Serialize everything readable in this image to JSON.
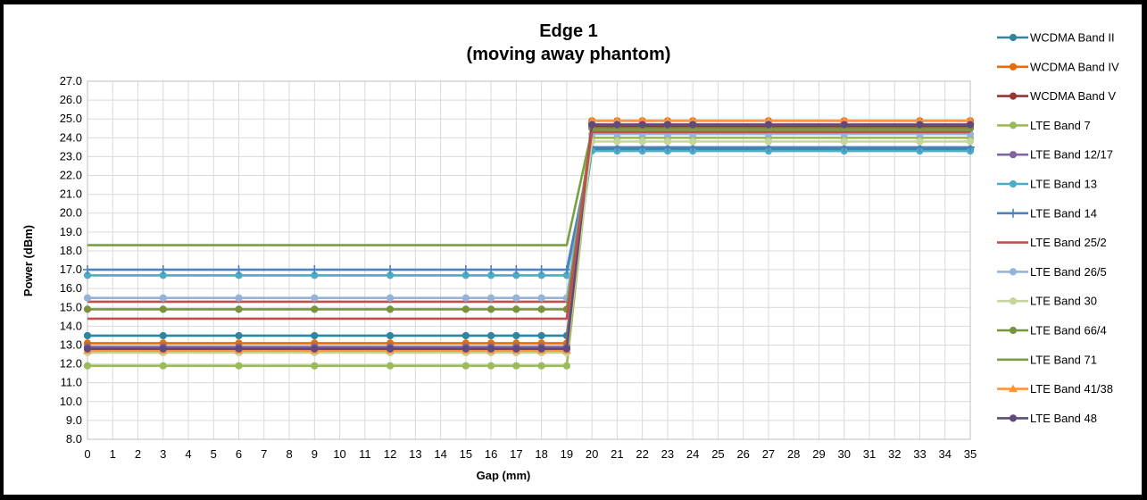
{
  "chart_data": {
    "type": "line",
    "title": [
      "Edge 1",
      "(moving away phantom)"
    ],
    "xlabel": "Gap (mm)",
    "ylabel": "Power (dBm)",
    "x": [
      0,
      1,
      2,
      3,
      4,
      5,
      6,
      7,
      8,
      9,
      10,
      11,
      12,
      13,
      14,
      15,
      16,
      17,
      18,
      19,
      20,
      21,
      22,
      23,
      24,
      25,
      26,
      27,
      28,
      29,
      30,
      31,
      32,
      33,
      34,
      35
    ],
    "x_ticks": [
      "0",
      "1",
      "2",
      "3",
      "4",
      "5",
      "6",
      "7",
      "8",
      "9",
      "10",
      "11",
      "12",
      "13",
      "14",
      "15",
      "16",
      "17",
      "18",
      "19",
      "20",
      "21",
      "22",
      "23",
      "24",
      "25",
      "26",
      "27",
      "28",
      "29",
      "30",
      "31",
      "32",
      "33",
      "34",
      "35"
    ],
    "ylim": [
      8.0,
      27.0
    ],
    "y_ticks": [
      "8.0",
      "9.0",
      "10.0",
      "11.0",
      "12.0",
      "13.0",
      "14.0",
      "15.0",
      "16.0",
      "17.0",
      "18.0",
      "19.0",
      "20.0",
      "21.0",
      "22.0",
      "23.0",
      "24.0",
      "25.0",
      "26.0",
      "27.0"
    ],
    "grid": true,
    "legend_position": "right",
    "marker_x": [
      0,
      3,
      6,
      9,
      12,
      15,
      16,
      17,
      18,
      19,
      20,
      21,
      22,
      23,
      24,
      27,
      30,
      33,
      35
    ],
    "series": [
      {
        "name": "WCDMA Band II",
        "color": "#31859C",
        "marker": "circle",
        "low": 13.5,
        "high": 23.4
      },
      {
        "name": "WCDMA Band IV",
        "color": "#E46C0A",
        "marker": "circle",
        "low": 13.1,
        "high": 24.9
      },
      {
        "name": "WCDMA Band V",
        "color": "#953735",
        "marker": "circle",
        "low": 12.8,
        "high": 24.6
      },
      {
        "name": "LTE Band 7",
        "color": "#9BBB59",
        "marker": "circle",
        "low": 11.9,
        "high": 24.0
      },
      {
        "name": "LTE Band 12/17",
        "color": "#8064A2",
        "marker": "circle",
        "low": 12.9,
        "high": 24.7
      },
      {
        "name": "LTE Band 13",
        "color": "#4BACC6",
        "marker": "circle",
        "low": 16.7,
        "high": 23.3
      },
      {
        "name": "LTE Band 14",
        "color": "#4F81BD",
        "marker": "plus",
        "low": 17.0,
        "high": 23.5
      },
      {
        "name": "LTE Band 25/2",
        "color": "#C0504D",
        "marker": "none",
        "low": 15.3,
        "high": 24.4
      },
      {
        "name": "LTE Band 26/5",
        "color": "#95B3D7",
        "marker": "circle",
        "low": 15.5,
        "high": 24.2
      },
      {
        "name": "LTE Band 30",
        "color": "#C3D69B",
        "marker": "circle",
        "low": 12.6,
        "high": 23.8
      },
      {
        "name": "LTE Band 66/4",
        "color": "#77933C",
        "marker": "circle",
        "low": 14.9,
        "high": 24.5
      },
      {
        "name": "LTE Band 71",
        "color": "#76A240",
        "marker": "none",
        "low": 18.3,
        "high": 24.4
      },
      {
        "name": "LTE Band 41/38",
        "color": "#F79646",
        "marker": "triangle",
        "low": 12.7,
        "high": 24.9
      },
      {
        "name": "LTE Band 48",
        "color": "#604A7B",
        "marker": "circle",
        "low": 12.8,
        "high": 24.7
      },
      {
        "name": "",
        "color": "#C0504D",
        "marker": "none",
        "low": 14.4,
        "high": 24.3
      }
    ]
  }
}
